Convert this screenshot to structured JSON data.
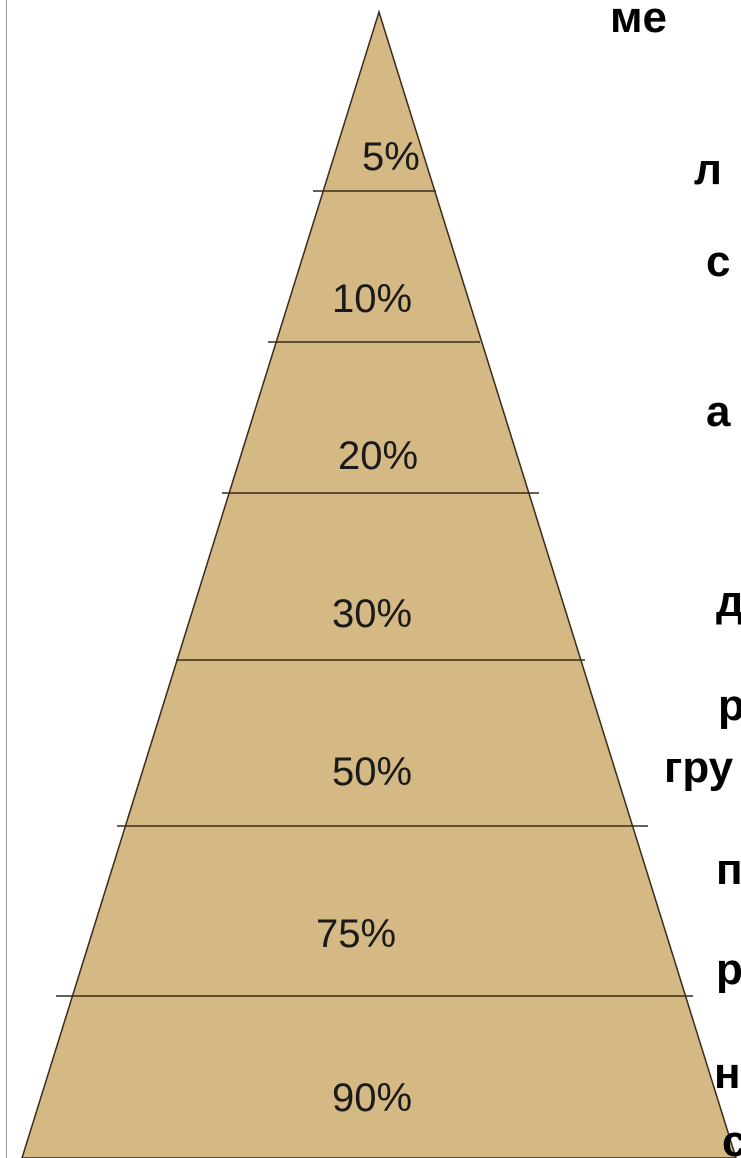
{
  "colors": {
    "pyramid_fill": "#d4b984",
    "line": "#3a2a1a"
  },
  "pyramid": {
    "levels": [
      {
        "label": "5%"
      },
      {
        "label": "10%"
      },
      {
        "label": "20%"
      },
      {
        "label": "30%"
      },
      {
        "label": "50%"
      },
      {
        "label": "75%"
      },
      {
        "label": "90%"
      }
    ]
  },
  "side_text": [
    "ме",
    "л",
    "с",
    "а",
    "д",
    "р",
    "гру",
    "п",
    "р",
    "н",
    "с"
  ]
}
